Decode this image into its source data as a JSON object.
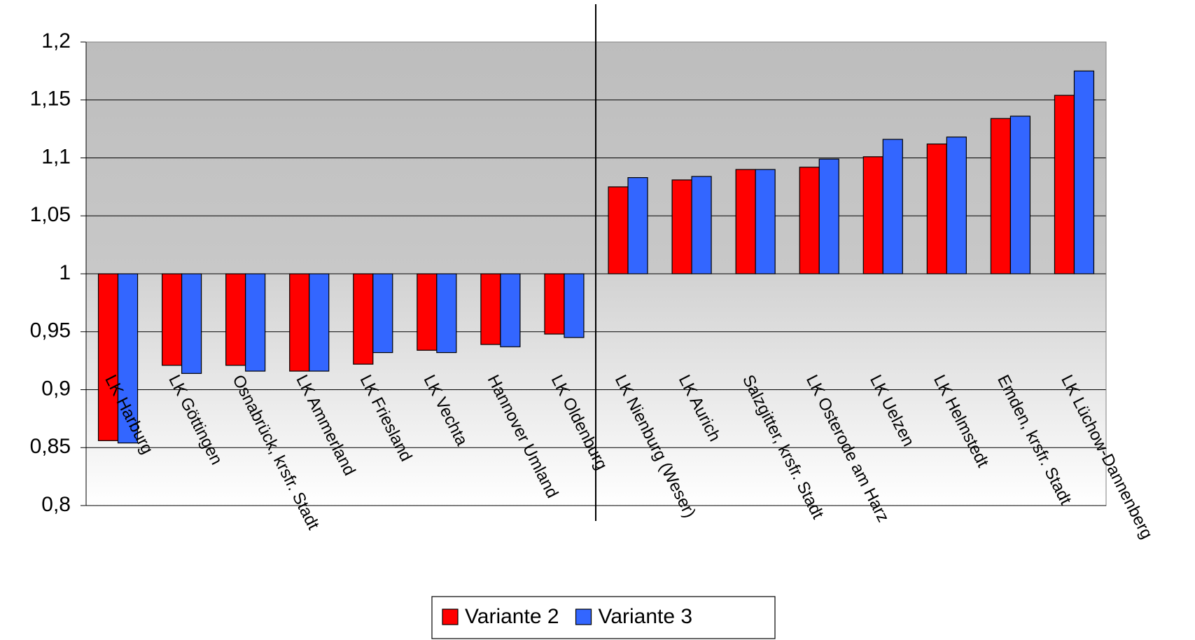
{
  "chart_data": {
    "type": "bar",
    "categories": [
      "LK Harburg",
      "LK Göttingen",
      "Osnabrück, krsfr. Stadt",
      "LK Ammerland",
      "LK Friesland",
      "LK Vechta",
      "Hannover Umland",
      "LK Oldenburg",
      "LK Nienburg (Weser)",
      "LK Aurich",
      "Salzgitter, krsfr. Stadt",
      "LK Osterode am Harz",
      "LK Uelzen",
      "LK Helmstedt",
      "Emden, krsfr. Stadt",
      "LK Lüchow-Dannenberg"
    ],
    "series": [
      {
        "name": "Variante 2",
        "color": "#ff0000",
        "values": [
          0.856,
          0.921,
          0.921,
          0.916,
          0.922,
          0.934,
          0.939,
          0.948,
          1.075,
          1.081,
          1.09,
          1.092,
          1.101,
          1.112,
          1.134,
          1.154
        ]
      },
      {
        "name": "Variante 3",
        "color": "#3366ff",
        "values": [
          0.854,
          0.914,
          0.916,
          0.916,
          0.932,
          0.932,
          0.937,
          0.945,
          1.083,
          1.084,
          1.09,
          1.099,
          1.116,
          1.118,
          1.136,
          1.175
        ]
      }
    ],
    "baseline": 1,
    "ylim": [
      0.8,
      1.2
    ],
    "yticks": [
      {
        "value": 0.8,
        "label": "0,8"
      },
      {
        "value": 0.85,
        "label": "0,85"
      },
      {
        "value": 0.9,
        "label": "0,9"
      },
      {
        "value": 0.95,
        "label": "0,95"
      },
      1,
      {
        "value": 1.05,
        "label": "1,05"
      },
      {
        "value": 1.1,
        "label": "1,1"
      },
      {
        "value": 1.15,
        "label": "1,15"
      },
      {
        "value": 1.2,
        "label": "1,2"
      }
    ],
    "grid": true,
    "legend": "bottom"
  }
}
